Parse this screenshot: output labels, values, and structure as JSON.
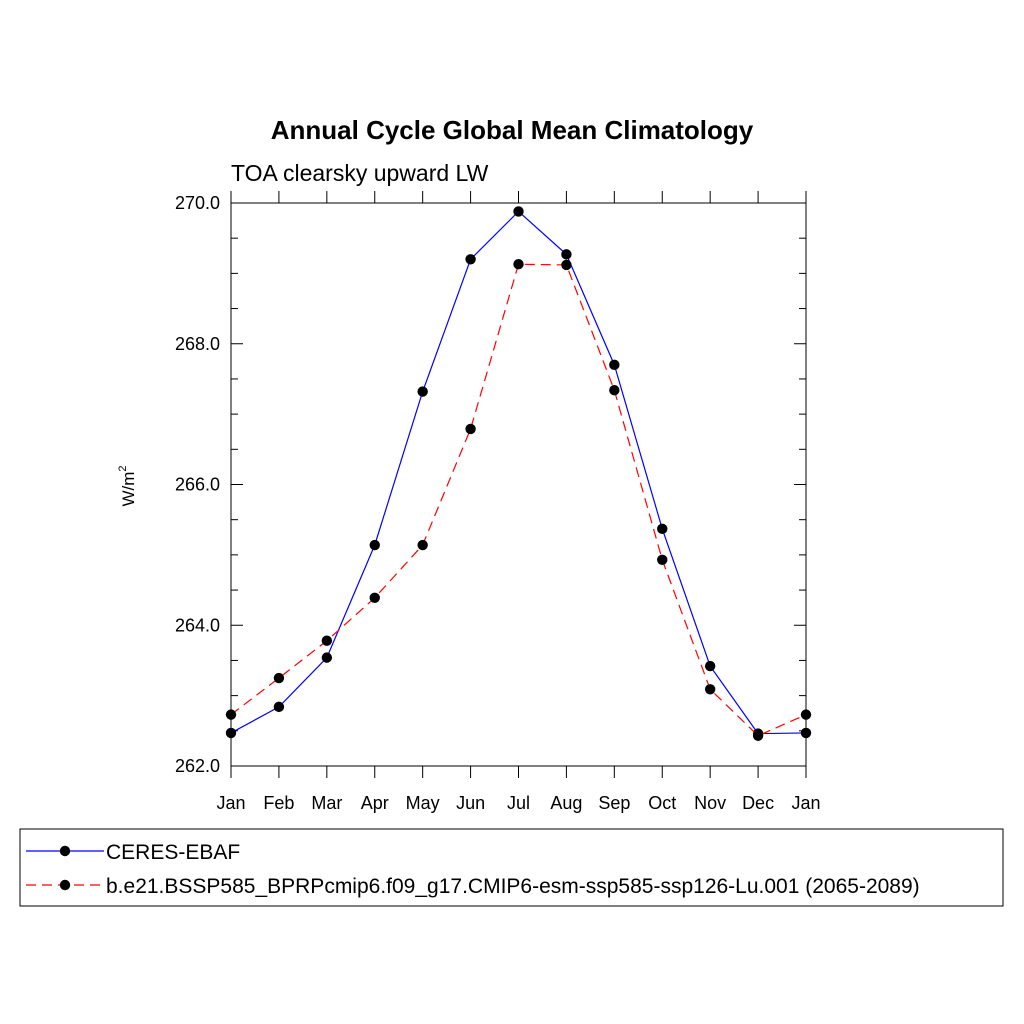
{
  "chart_data": {
    "type": "line",
    "title": "Annual Cycle Global Mean Climatology",
    "subtitle": "TOA clearsky upward LW",
    "xlabel": "",
    "ylabel": "W/m",
    "ylabel_superscript": "2",
    "categories": [
      "Jan",
      "Feb",
      "Mar",
      "Apr",
      "May",
      "Jun",
      "Jul",
      "Aug",
      "Sep",
      "Oct",
      "Nov",
      "Dec",
      "Jan"
    ],
    "ylim": [
      262.0,
      270.0
    ],
    "yticks": [
      "262.0",
      "264.0",
      "266.0",
      "268.0",
      "270.0"
    ],
    "grid": false,
    "legend_position": "bottom",
    "series": [
      {
        "name": "CERES-EBAF",
        "color": "#0000ff",
        "dash": "solid",
        "marker": "filled-circle",
        "values": [
          262.47,
          262.84,
          263.54,
          265.14,
          267.32,
          269.2,
          269.88,
          269.27,
          267.7,
          265.37,
          263.42,
          262.46,
          262.47
        ]
      },
      {
        "name": "b.e21.BSSP585_BPRPcmip6.f09_g17.CMIP6-esm-ssp585-ssp126-Lu.001 (2065-2089)",
        "color": "#ff0000",
        "dash": "dashed",
        "marker": "filled-circle",
        "values": [
          262.73,
          263.25,
          263.78,
          264.39,
          265.14,
          266.79,
          269.13,
          269.12,
          267.34,
          264.93,
          263.09,
          262.43,
          262.73
        ]
      }
    ]
  }
}
